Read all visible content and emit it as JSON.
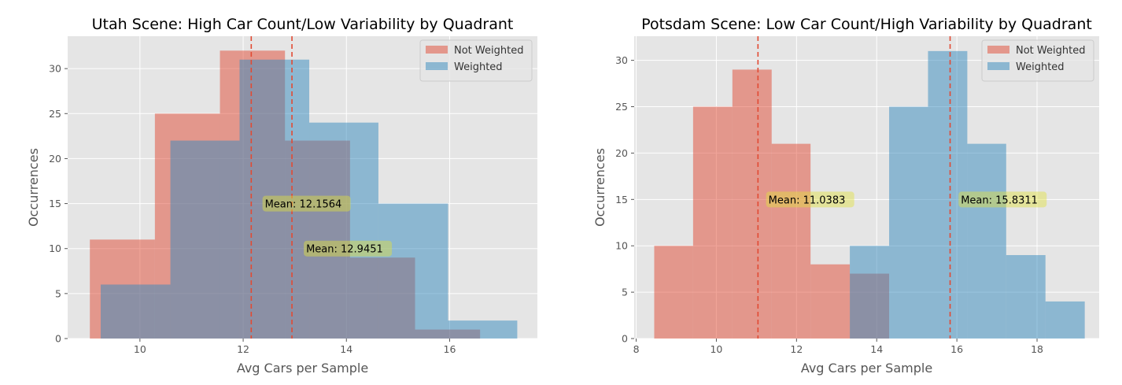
{
  "colors": {
    "background": "#ffffff",
    "plot_bg": "#e5e5e5",
    "grid": "#ffffff",
    "not_weighted": "#e24a33",
    "weighted": "#348abd",
    "mean_line": "#e24a33",
    "annotation_bg": "#e0e03e",
    "tick_text": "#555555",
    "label_text": "#555555",
    "title_text": "#000000"
  },
  "chart_data": [
    {
      "type": "histogram",
      "title": "Utah Scene: High Car Count/Low Variability by Quadrant",
      "xlabel": "Avg Cars per Sample",
      "ylabel": "Occurrences",
      "xlim": [
        8.6,
        17.7
      ],
      "ylim": [
        0,
        33.6
      ],
      "xticks": [
        10,
        12,
        14,
        16
      ],
      "yticks": [
        0,
        5,
        10,
        15,
        20,
        25,
        30
      ],
      "grid": true,
      "legend_position": "top-right",
      "series": [
        {
          "name": "Not Weighted",
          "color": "not_weighted",
          "bins": [
            {
              "x0": 9.03,
              "x1": 10.29,
              "value": 11
            },
            {
              "x0": 10.29,
              "x1": 11.55,
              "value": 25
            },
            {
              "x0": 11.55,
              "x1": 12.81,
              "value": 32
            },
            {
              "x0": 12.81,
              "x1": 14.07,
              "value": 22
            },
            {
              "x0": 14.07,
              "x1": 15.33,
              "value": 9
            },
            {
              "x0": 15.33,
              "x1": 16.59,
              "value": 1
            }
          ]
        },
        {
          "name": "Weighted",
          "color": "weighted",
          "bins": [
            {
              "x0": 9.24,
              "x1": 10.59,
              "value": 6
            },
            {
              "x0": 10.59,
              "x1": 11.93,
              "value": 22
            },
            {
              "x0": 11.93,
              "x1": 13.28,
              "value": 31
            },
            {
              "x0": 13.28,
              "x1": 14.62,
              "value": 24
            },
            {
              "x0": 14.62,
              "x1": 15.97,
              "value": 15
            },
            {
              "x0": 15.97,
              "x1": 17.31,
              "value": 2
            }
          ]
        }
      ],
      "mean_lines": [
        {
          "x": 12.1564,
          "label": "Mean: 12.1564",
          "label_x": 12.42,
          "label_y": 15
        },
        {
          "x": 12.9451,
          "label": "Mean: 12.9451",
          "label_x": 13.22,
          "label_y": 10
        }
      ]
    },
    {
      "type": "histogram",
      "title": "Potsdam Scene: Low Car Count/High Variability by Quadrant",
      "xlabel": "Avg Cars per Sample",
      "ylabel": "Occurrences",
      "xlim": [
        7.95,
        19.55
      ],
      "ylim": [
        0,
        32.6
      ],
      "xticks": [
        8,
        10,
        12,
        14,
        16,
        18
      ],
      "yticks": [
        0,
        5,
        10,
        15,
        20,
        25,
        30
      ],
      "grid": true,
      "legend_position": "top-right",
      "series": [
        {
          "name": "Not Weighted",
          "color": "not_weighted",
          "bins": [
            {
              "x0": 8.45,
              "x1": 9.42,
              "value": 10
            },
            {
              "x0": 9.42,
              "x1": 10.4,
              "value": 25
            },
            {
              "x0": 10.4,
              "x1": 11.38,
              "value": 29
            },
            {
              "x0": 11.38,
              "x1": 12.35,
              "value": 21
            },
            {
              "x0": 12.35,
              "x1": 13.33,
              "value": 8
            },
            {
              "x0": 13.33,
              "x1": 14.31,
              "value": 7
            }
          ]
        },
        {
          "name": "Weighted",
          "color": "weighted",
          "bins": [
            {
              "x0": 13.33,
              "x1": 14.31,
              "value": 10
            },
            {
              "x0": 14.31,
              "x1": 15.28,
              "value": 25
            },
            {
              "x0": 15.28,
              "x1": 16.26,
              "value": 31
            },
            {
              "x0": 16.26,
              "x1": 17.23,
              "value": 21
            },
            {
              "x0": 17.23,
              "x1": 18.21,
              "value": 9
            },
            {
              "x0": 18.21,
              "x1": 19.19,
              "value": 4
            }
          ]
        }
      ],
      "mean_lines": [
        {
          "x": 11.0383,
          "label": "Mean: 11.0383",
          "label_x": 11.3,
          "label_y": 15
        },
        {
          "x": 15.8311,
          "label": "Mean: 15.8311",
          "label_x": 16.1,
          "label_y": 15
        }
      ]
    }
  ]
}
